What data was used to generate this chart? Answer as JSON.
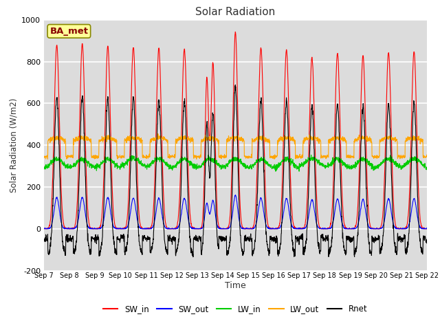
{
  "title": "Solar Radiation",
  "xlabel": "Time",
  "ylabel": "Solar Radiation (W/m2)",
  "ylim": [
    -200,
    1000
  ],
  "xlim": [
    0,
    15
  ],
  "background_color": "#dcdcdc",
  "grid_color": "white",
  "text_color": "#333333",
  "annotation_text": "BA_met",
  "annotation_bg": "#ffff99",
  "annotation_border": "#888800",
  "annotation_text_color": "#880000",
  "series": {
    "SW_in": {
      "color": "#ff0000",
      "label": "SW_in"
    },
    "SW_out": {
      "color": "#0000ff",
      "label": "SW_out"
    },
    "LW_in": {
      "color": "#00cc00",
      "label": "LW_in"
    },
    "LW_out": {
      "color": "#ffa500",
      "label": "LW_out"
    },
    "Rnet": {
      "color": "#000000",
      "label": "Rnet"
    }
  },
  "n_days": 15,
  "tick_labels": [
    "Sep 7",
    "Sep 8",
    "Sep 9",
    "Sep 10",
    "Sep 11",
    "Sep 12",
    "Sep 13",
    "Sep 14",
    "Sep 15",
    "Sep 16",
    "Sep 17",
    "Sep 18",
    "Sep 19",
    "Sep 20",
    "Sep 21",
    "Sep 22"
  ],
  "tick_positions": [
    0,
    1,
    2,
    3,
    4,
    5,
    6,
    7,
    8,
    9,
    10,
    11,
    12,
    13,
    14,
    15
  ],
  "yticks": [
    -200,
    0,
    200,
    400,
    600,
    800,
    1000
  ]
}
